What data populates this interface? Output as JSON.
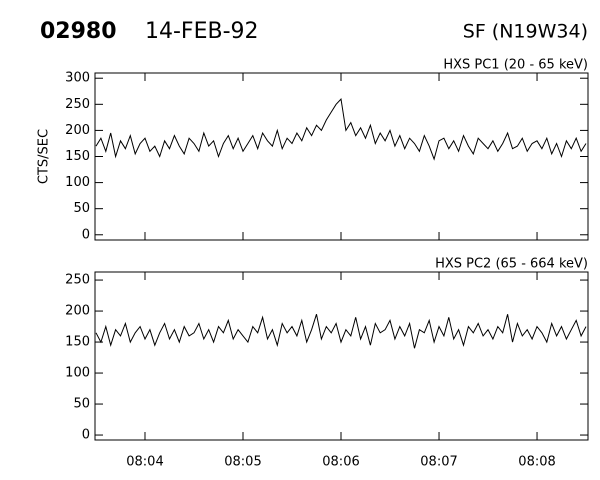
{
  "header": {
    "id": "02980",
    "date": "14-FEB-92",
    "event": "SF (N19W34)"
  },
  "chart_data": [
    {
      "type": "line",
      "title": "HXS PC1 (20 - 65 keV)",
      "ylabel": "CTS/SEC",
      "x": [
        3.5,
        3.55,
        3.6,
        3.65,
        3.7,
        3.75,
        3.8,
        3.85,
        3.9,
        3.95,
        4.0,
        4.05,
        4.1,
        4.15,
        4.2,
        4.25,
        4.3,
        4.35,
        4.4,
        4.45,
        4.5,
        4.55,
        4.6,
        4.65,
        4.7,
        4.75,
        4.8,
        4.85,
        4.9,
        4.95,
        5.0,
        5.05,
        5.1,
        5.15,
        5.2,
        5.25,
        5.3,
        5.35,
        5.4,
        5.45,
        5.5,
        5.55,
        5.6,
        5.65,
        5.7,
        5.75,
        5.8,
        5.85,
        5.9,
        5.95,
        6.0,
        6.05,
        6.1,
        6.15,
        6.2,
        6.25,
        6.3,
        6.35,
        6.4,
        6.45,
        6.5,
        6.55,
        6.6,
        6.65,
        6.7,
        6.75,
        6.8,
        6.85,
        6.9,
        6.95,
        7.0,
        7.05,
        7.1,
        7.15,
        7.2,
        7.25,
        7.3,
        7.35,
        7.4,
        7.45,
        7.5,
        7.55,
        7.6,
        7.65,
        7.7,
        7.75,
        7.8,
        7.85,
        7.9,
        7.95,
        8.0,
        8.05,
        8.1,
        8.15,
        8.2,
        8.25,
        8.3,
        8.35,
        8.4,
        8.45,
        8.5
      ],
      "series": [
        {
          "color": "#000000",
          "values": [
            170,
            185,
            160,
            195,
            150,
            180,
            165,
            190,
            155,
            175,
            185,
            160,
            170,
            150,
            180,
            165,
            190,
            170,
            155,
            185,
            175,
            160,
            195,
            170,
            180,
            150,
            175,
            190,
            165,
            185,
            160,
            175,
            190,
            165,
            195,
            180,
            170,
            200,
            165,
            185,
            175,
            195,
            180,
            205,
            190,
            210,
            200,
            220,
            235,
            250,
            260,
            200,
            215,
            190,
            205,
            185,
            210,
            175,
            195,
            180,
            200,
            170,
            190,
            165,
            185,
            175,
            160,
            190,
            170,
            145,
            180,
            185,
            165,
            180,
            160,
            190,
            170,
            155,
            185,
            175,
            165,
            180,
            160,
            175,
            195,
            165,
            170,
            185,
            160,
            175,
            180,
            165,
            185,
            155,
            175,
            150,
            180,
            165,
            185,
            160,
            175
          ]
        }
      ],
      "xlim": [
        3.49,
        8.52
      ],
      "xticks": [
        4,
        5,
        6,
        7,
        8
      ],
      "ylim": [
        -10,
        310
      ],
      "yticks": [
        0,
        50,
        100,
        150,
        200,
        250,
        300
      ]
    },
    {
      "type": "line",
      "title": "HXS PC2 (65 - 664 keV)",
      "x": [
        3.5,
        3.55,
        3.6,
        3.65,
        3.7,
        3.75,
        3.8,
        3.85,
        3.9,
        3.95,
        4.0,
        4.05,
        4.1,
        4.15,
        4.2,
        4.25,
        4.3,
        4.35,
        4.4,
        4.45,
        4.5,
        4.55,
        4.6,
        4.65,
        4.7,
        4.75,
        4.8,
        4.85,
        4.9,
        4.95,
        5.0,
        5.05,
        5.1,
        5.15,
        5.2,
        5.25,
        5.3,
        5.35,
        5.4,
        5.45,
        5.5,
        5.55,
        5.6,
        5.65,
        5.7,
        5.75,
        5.8,
        5.85,
        5.9,
        5.95,
        6.0,
        6.05,
        6.1,
        6.15,
        6.2,
        6.25,
        6.3,
        6.35,
        6.4,
        6.45,
        6.5,
        6.55,
        6.6,
        6.65,
        6.7,
        6.75,
        6.8,
        6.85,
        6.9,
        6.95,
        7.0,
        7.05,
        7.1,
        7.15,
        7.2,
        7.25,
        7.3,
        7.35,
        7.4,
        7.45,
        7.5,
        7.55,
        7.6,
        7.65,
        7.7,
        7.75,
        7.8,
        7.85,
        7.9,
        7.95,
        8.0,
        8.05,
        8.1,
        8.15,
        8.2,
        8.25,
        8.3,
        8.35,
        8.4,
        8.45,
        8.5
      ],
      "series": [
        {
          "color": "#000000",
          "values": [
            165,
            150,
            175,
            145,
            170,
            160,
            180,
            150,
            165,
            175,
            155,
            170,
            145,
            165,
            180,
            155,
            170,
            150,
            175,
            160,
            165,
            180,
            155,
            170,
            150,
            175,
            165,
            185,
            155,
            170,
            160,
            150,
            175,
            165,
            190,
            155,
            170,
            145,
            180,
            165,
            175,
            160,
            185,
            150,
            170,
            195,
            155,
            175,
            165,
            180,
            150,
            170,
            160,
            190,
            155,
            175,
            145,
            180,
            165,
            170,
            185,
            155,
            175,
            160,
            180,
            140,
            170,
            165,
            185,
            150,
            175,
            160,
            190,
            155,
            170,
            145,
            175,
            165,
            180,
            160,
            170,
            155,
            175,
            165,
            195,
            150,
            180,
            160,
            170,
            155,
            175,
            165,
            150,
            180,
            160,
            175,
            155,
            170,
            185,
            160,
            175
          ]
        }
      ],
      "xlim": [
        3.49,
        8.52
      ],
      "xticks": [
        {
          "value": 4,
          "label": "08:04"
        },
        {
          "value": 5,
          "label": "08:05"
        },
        {
          "value": 6,
          "label": "08:06"
        },
        {
          "value": 7,
          "label": "08:07"
        },
        {
          "value": 8,
          "label": "08:08"
        }
      ],
      "ylim": [
        -8,
        263
      ],
      "yticks": [
        0,
        50,
        100,
        150,
        200,
        250
      ]
    }
  ]
}
